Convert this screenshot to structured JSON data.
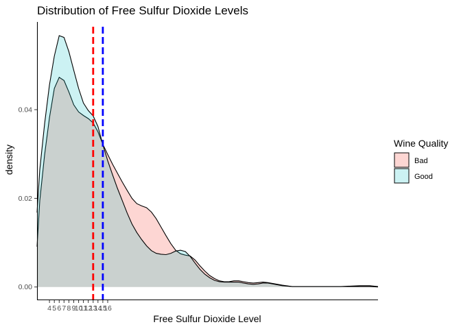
{
  "chart_data": {
    "type": "area",
    "title": "Distribution of Free Sulfur Dioxide Levels",
    "xlabel": "Free Sulfur Dioxide Level",
    "ylabel": "density",
    "xlim": [
      1.44,
      71.7
    ],
    "ylim": [
      -0.00298,
      0.0598
    ],
    "y_ticks": [
      0.0,
      0.02,
      0.04
    ],
    "y_tick_labels": [
      "0.00",
      "0.02",
      "0.04"
    ],
    "x_ticks": [
      4,
      5,
      6,
      7,
      8,
      9,
      10,
      11,
      12,
      13,
      14,
      15,
      16
    ],
    "x_tick_labels": [
      "4",
      "5",
      "6",
      "7",
      "8",
      "9",
      "10",
      "11",
      "12",
      "13",
      "14",
      "15",
      "16"
    ],
    "grid": false,
    "legend": {
      "title": "Wine Quality",
      "position": "right",
      "entries": [
        "Bad",
        "Good"
      ]
    },
    "series": [
      {
        "name": "Bad",
        "fill": "#F8766D",
        "fill_opacity": 0.3,
        "x": [
          1,
          2,
          3,
          4,
          5,
          6,
          7,
          8,
          9,
          10,
          11,
          12,
          13,
          14,
          15,
          16,
          17,
          18,
          19,
          20,
          21,
          22,
          23,
          24,
          25,
          26,
          27,
          28,
          29,
          30,
          31,
          32,
          33,
          34,
          35,
          36,
          37,
          38,
          39,
          40,
          41,
          42,
          43,
          44,
          45,
          46,
          47,
          48,
          49,
          50,
          52,
          54,
          56,
          58,
          60,
          62,
          64,
          66,
          68,
          70,
          72
        ],
        "y": [
          0.0091,
          0.0195,
          0.0298,
          0.0382,
          0.0448,
          0.0473,
          0.0466,
          0.044,
          0.0411,
          0.0395,
          0.0387,
          0.038,
          0.037,
          0.035,
          0.0322,
          0.0299,
          0.0277,
          0.0257,
          0.0237,
          0.0218,
          0.02,
          0.0188,
          0.0183,
          0.0179,
          0.0169,
          0.0154,
          0.0135,
          0.0116,
          0.0098,
          0.0083,
          0.0075,
          0.0072,
          0.007,
          0.0061,
          0.0048,
          0.0036,
          0.0026,
          0.0019,
          0.0014,
          0.0012,
          0.0012,
          0.0014,
          0.0014,
          0.0012,
          0.001,
          0.0009,
          0.001,
          0.0011,
          0.001,
          0.0008,
          0.0004,
          0.0001,
          0.0001,
          0.0001,
          0.0001,
          0.0001,
          0.0001,
          0.0002,
          0.0003,
          0.0003,
          0.0001
        ]
      },
      {
        "name": "Good",
        "fill": "#00BFC4",
        "fill_opacity": 0.2,
        "x": [
          1,
          2,
          3,
          4,
          5,
          6,
          7,
          8,
          9,
          10,
          11,
          12,
          13,
          14,
          15,
          16,
          17,
          18,
          19,
          20,
          21,
          22,
          23,
          24,
          25,
          26,
          27,
          28,
          29,
          30,
          31,
          32,
          33,
          34,
          35,
          36,
          37,
          38,
          39,
          40,
          41,
          42,
          43,
          44,
          45,
          46,
          47,
          48,
          49,
          50,
          52,
          54,
          56,
          58,
          60,
          62,
          64,
          66,
          68,
          70,
          72
        ],
        "y": [
          0.0168,
          0.0265,
          0.0368,
          0.0456,
          0.0521,
          0.0567,
          0.0563,
          0.0531,
          0.0489,
          0.0448,
          0.0415,
          0.0398,
          0.0386,
          0.0362,
          0.0321,
          0.0285,
          0.0253,
          0.0223,
          0.0195,
          0.0167,
          0.0142,
          0.0123,
          0.0107,
          0.0093,
          0.0082,
          0.0076,
          0.0074,
          0.0073,
          0.0076,
          0.0081,
          0.0083,
          0.008,
          0.0069,
          0.0054,
          0.004,
          0.0029,
          0.0021,
          0.0015,
          0.0012,
          0.0011,
          0.0011,
          0.0011,
          0.0011,
          0.0009,
          0.0007,
          0.0006,
          0.0007,
          0.0009,
          0.0009,
          0.0007,
          0.0003,
          0.0001,
          0.0001,
          0.0001,
          0.0001,
          0.0001,
          0.0001,
          0.0001,
          0.0001,
          0.0001,
          0.0
        ]
      }
    ],
    "annotations": [
      {
        "type": "vline",
        "x": 13.0,
        "color": "#FF0000",
        "dash": "dashed"
      },
      {
        "type": "vline",
        "x": 15.0,
        "color": "#0000FF",
        "dash": "dashed"
      }
    ]
  }
}
